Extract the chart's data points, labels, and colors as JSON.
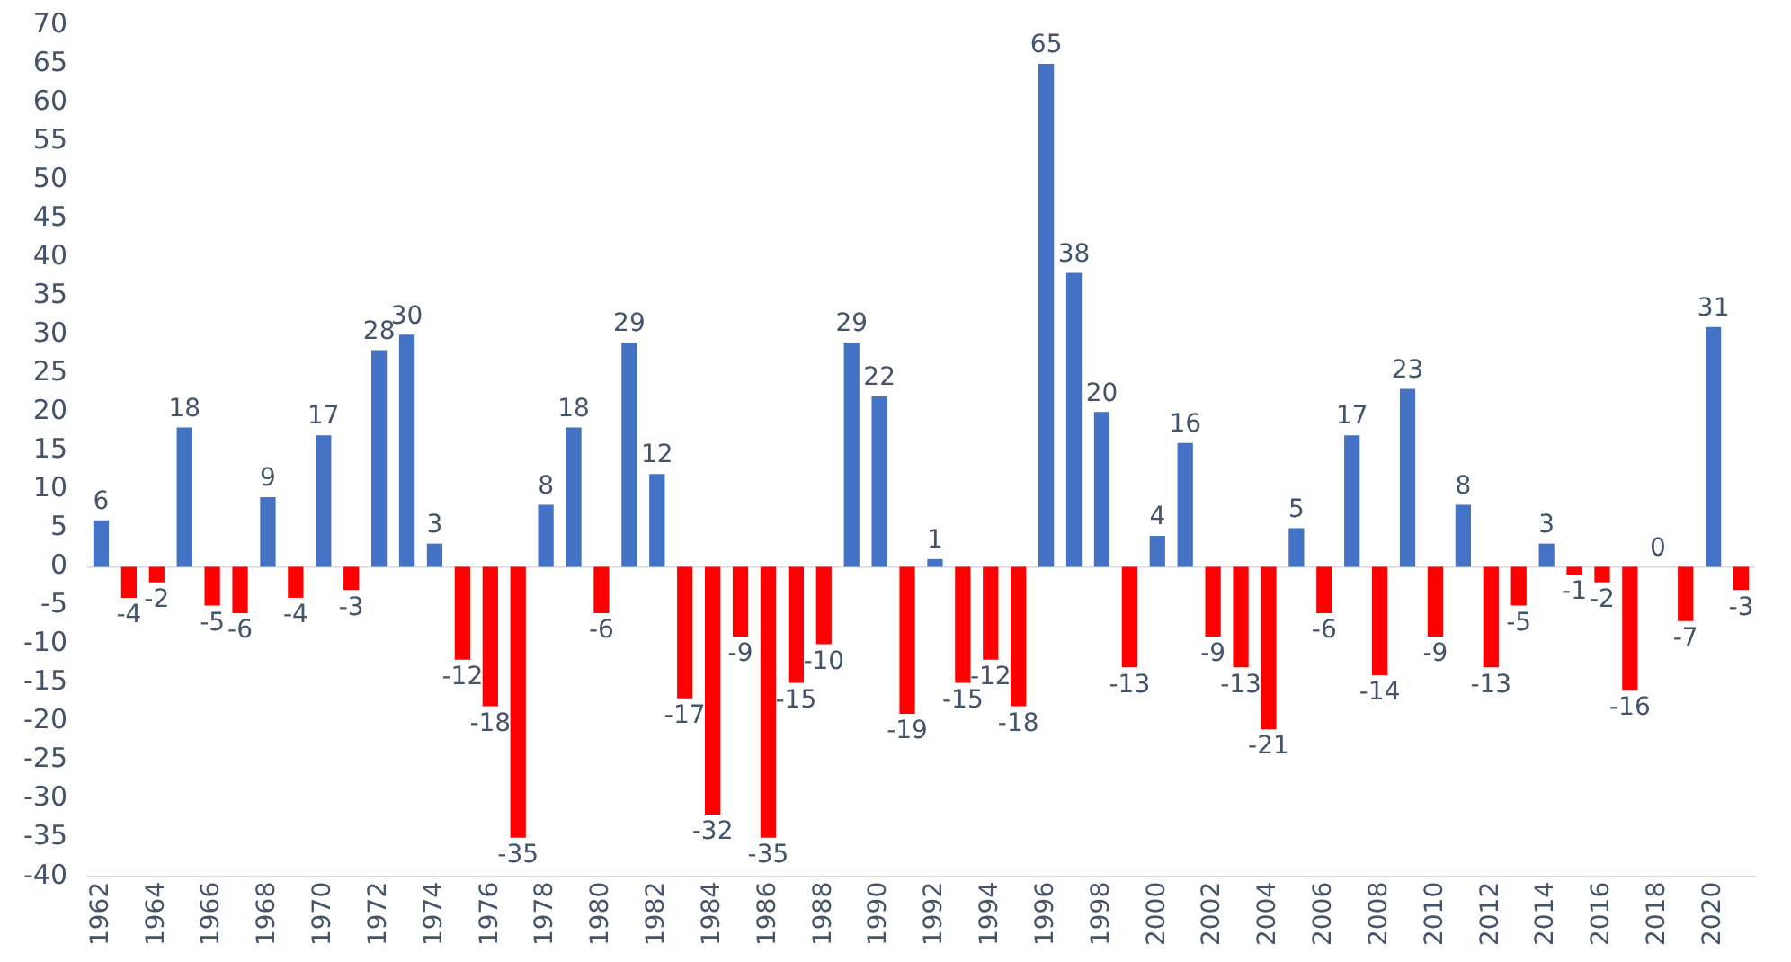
{
  "chart_data": {
    "type": "bar",
    "categories": [
      "1962",
      null,
      "1964",
      null,
      "1966",
      null,
      "1968",
      null,
      "1970",
      null,
      "1972",
      null,
      "1974",
      null,
      "1976",
      null,
      "1978",
      null,
      "1980",
      null,
      "1982",
      null,
      "1984",
      null,
      "1986",
      null,
      "1988",
      null,
      "1990",
      null,
      "1992",
      null,
      "1994",
      null,
      "1996",
      null,
      "1998",
      null,
      "2000",
      null,
      "2002",
      null,
      "2004",
      null,
      "2006",
      null,
      "2008",
      null,
      "2010",
      null,
      "2012",
      null,
      "2014",
      null,
      "2016",
      null,
      "2018",
      null,
      "2020",
      null
    ],
    "values": [
      6,
      -4,
      -2,
      18,
      -5,
      -6,
      9,
      -4,
      17,
      -3,
      28,
      30,
      3,
      -12,
      -18,
      -35,
      8,
      18,
      -6,
      29,
      12,
      -17,
      -32,
      -9,
      -35,
      -15,
      -10,
      29,
      22,
      -19,
      1,
      -15,
      -12,
      -18,
      65,
      38,
      20,
      -13,
      4,
      16,
      -9,
      -13,
      -21,
      5,
      -6,
      17,
      -14,
      23,
      -9,
      8,
      -13,
      -5,
      3,
      -1,
      -2,
      -16,
      0,
      -7,
      31,
      -3
    ],
    "colors": [
      "#4472c4",
      "#ff0000",
      "#ff0000",
      "#4472c4",
      "#ff0000",
      "#ff0000",
      "#4472c4",
      "#ff0000",
      "#4472c4",
      "#ff0000",
      "#4472c4",
      "#4472c4",
      "#4472c4",
      "#ff0000",
      "#ff0000",
      "#ff0000",
      "#4472c4",
      "#4472c4",
      "#ff0000",
      "#4472c4",
      "#4472c4",
      "#ff0000",
      "#ff0000",
      "#ff0000",
      "#ff0000",
      "#ff0000",
      "#ff0000",
      "#4472c4",
      "#4472c4",
      "#ff0000",
      "#4472c4",
      "#ff0000",
      "#ff0000",
      "#ff0000",
      "#4472c4",
      "#4472c4",
      "#4472c4",
      "#ff0000",
      "#4472c4",
      "#4472c4",
      "#ff0000",
      "#ff0000",
      "#ff0000",
      "#4472c4",
      "#ff0000",
      "#4472c4",
      "#ff0000",
      "#4472c4",
      "#ff0000",
      "#4472c4",
      "#ff0000",
      "#ff0000",
      "#4472c4",
      "#ff0000",
      "#ff0000",
      "#ff0000",
      "#4472c4",
      "#ff0000",
      "#4472c4",
      "#ff0000"
    ],
    "ylim": [
      -40,
      70
    ],
    "yticks": [
      -40,
      -35,
      -30,
      -25,
      -20,
      -15,
      -10,
      -5,
      0,
      5,
      10,
      15,
      20,
      25,
      30,
      35,
      40,
      45,
      50,
      55,
      60,
      65,
      70
    ],
    "data_labels": true,
    "grid": false,
    "ref_lines": [
      {
        "axis": "y",
        "value": 0,
        "color": "#d9d9d9"
      }
    ],
    "legend": false
  }
}
